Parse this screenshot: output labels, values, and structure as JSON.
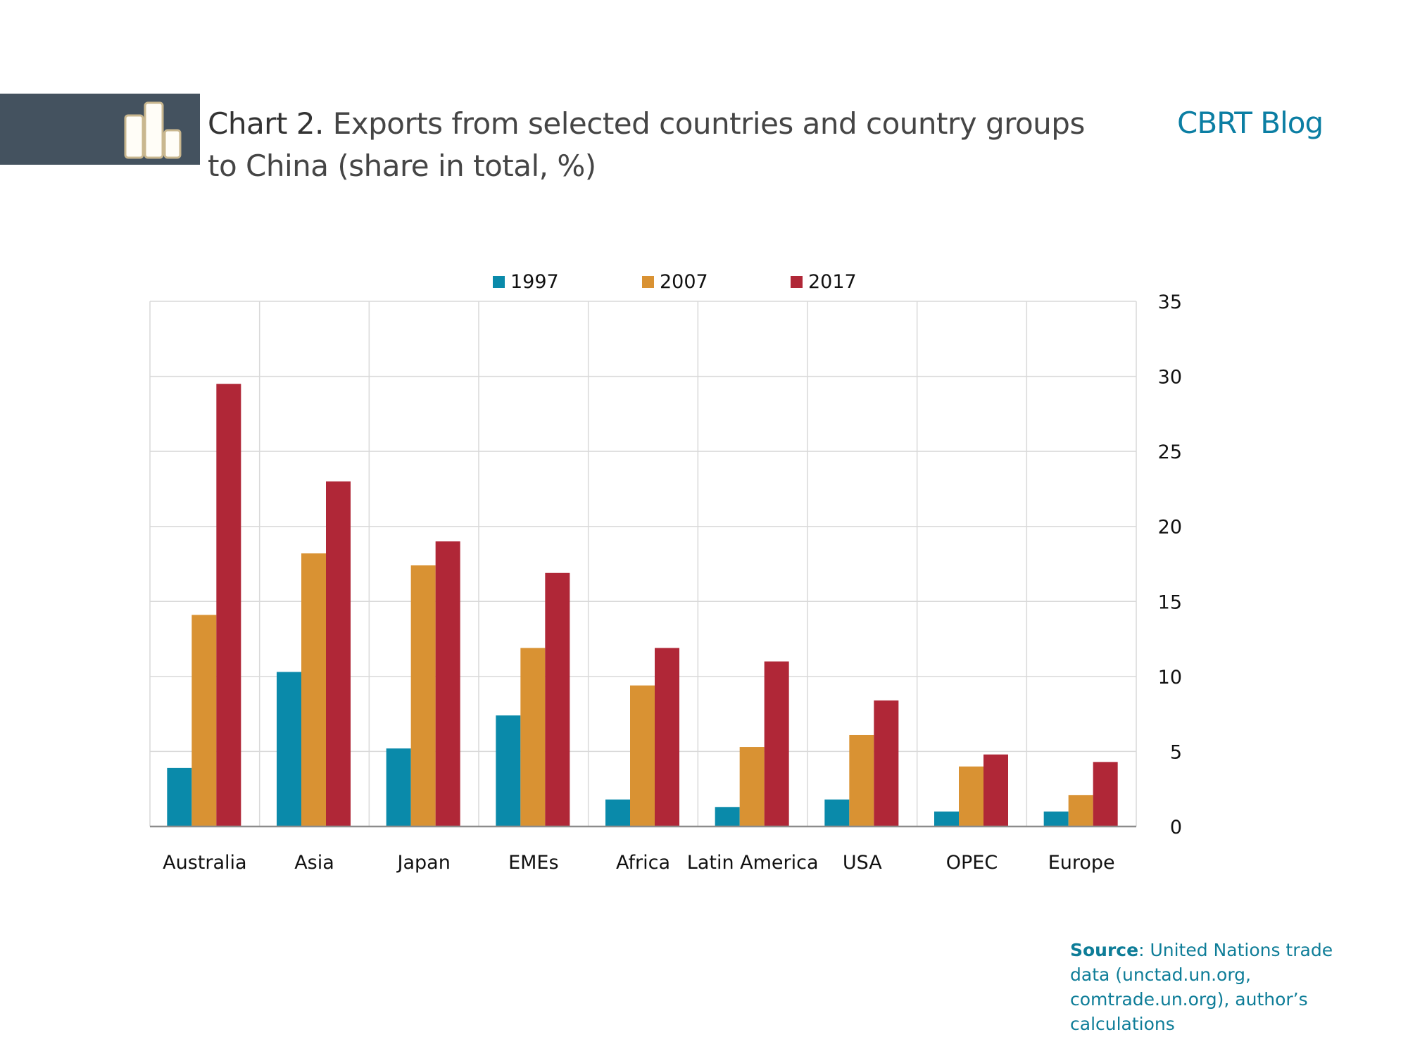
{
  "header": {
    "chart_label": "Chart 2.",
    "title_line1": " Exports from selected countries and country groups",
    "title_line2": "to China (share in total, %)",
    "brand": "CBRT Blog",
    "icon": "bar-chart-icon"
  },
  "colors": {
    "header_bar": "#44525f",
    "brand": "#0b7ea3",
    "series_1997": "#0a8aaa",
    "series_2007": "#d99233",
    "series_2017": "#b02737"
  },
  "source": {
    "label": "Source",
    "text": ": United Nations trade data (unctad.un.org, comtrade.un.org), author’s calculations"
  },
  "chart_data": {
    "type": "bar",
    "title": "Exports from selected countries and country groups to China (share in total, %)",
    "xlabel": "",
    "ylabel": "",
    "categories": [
      "Australia",
      "Asia",
      "Japan",
      "EMEs",
      "Africa",
      "Latin America",
      "USA",
      "OPEC",
      "Europe"
    ],
    "series": [
      {
        "name": "1997",
        "color": "#0a8aaa",
        "values": [
          3.9,
          10.3,
          5.2,
          7.4,
          1.8,
          1.3,
          1.8,
          1.0,
          1.0
        ]
      },
      {
        "name": "2007",
        "color": "#d99233",
        "values": [
          14.1,
          18.2,
          17.4,
          11.9,
          9.4,
          5.3,
          6.1,
          4.0,
          2.1
        ]
      },
      {
        "name": "2017",
        "color": "#b02737",
        "values": [
          29.5,
          23.0,
          19.0,
          16.9,
          11.9,
          11.0,
          8.4,
          4.8,
          4.3
        ]
      }
    ],
    "ylim": [
      0,
      35
    ],
    "yticks": [
      "0",
      "5",
      "10",
      "15",
      "20",
      "25",
      "30",
      "35"
    ],
    "y_axis_side": "right",
    "grid": true,
    "legend_position": "top"
  }
}
